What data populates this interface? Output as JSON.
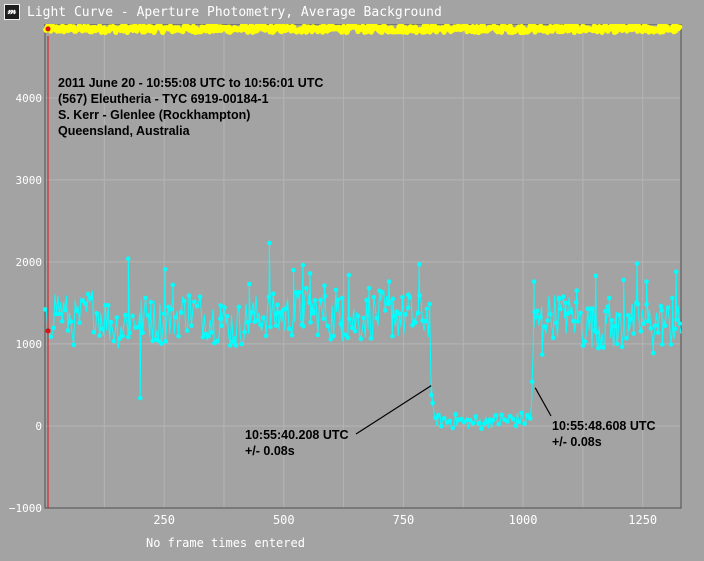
{
  "window": {
    "title": "Light Curve - Aperture Photometry, Average Background",
    "icon": "light-curve-app-icon"
  },
  "footer": {
    "note": "No frame times entered"
  },
  "colors": {
    "background": "#a3a3a3",
    "grid": "#b4b4b4",
    "axis": "#4f4f4f",
    "tick_label": "#ffffff",
    "comparison_series": "#ffff00",
    "target_series": "#00ffff",
    "cursor": "#dd1111",
    "annotation": "#000000"
  },
  "chart_data": {
    "type": "line",
    "xlim": [
      1,
      1330
    ],
    "ylim": [
      -1000,
      4900
    ],
    "x_ticks": [
      250,
      500,
      750,
      1000,
      1250
    ],
    "y_ticks": [
      -1000,
      0,
      1000,
      2000,
      3000,
      4000
    ],
    "grid": true,
    "cursor_x": 1,
    "series": [
      {
        "role": "comparison",
        "color": "#ffff00",
        "frames": [
          1,
          1330
        ],
        "level": 4840,
        "spread": 90
      },
      {
        "role": "target",
        "color": "#00ffff",
        "keypoints": [
          [
            1,
            1160
          ],
          [
            25,
            1480
          ],
          [
            60,
            1250
          ],
          [
            100,
            1430
          ],
          [
            150,
            1200
          ],
          [
            200,
            1330
          ],
          [
            250,
            1270
          ],
          [
            300,
            1420
          ],
          [
            350,
            1300
          ],
          [
            400,
            1200
          ],
          [
            450,
            1360
          ],
          [
            500,
            1330
          ],
          [
            550,
            1430
          ],
          [
            600,
            1310
          ],
          [
            650,
            1280
          ],
          [
            700,
            1370
          ],
          [
            750,
            1320
          ],
          [
            805,
            1340
          ],
          [
            808,
            540
          ],
          [
            812,
            80
          ],
          [
            850,
            60
          ],
          [
            900,
            40
          ],
          [
            950,
            70
          ],
          [
            1000,
            80
          ],
          [
            1016,
            80
          ],
          [
            1019,
            540
          ],
          [
            1023,
            1200
          ],
          [
            1050,
            1360
          ],
          [
            1100,
            1340
          ],
          [
            1150,
            1200
          ],
          [
            1200,
            1190
          ],
          [
            1250,
            1280
          ],
          [
            1300,
            1240
          ],
          [
            1330,
            1200
          ]
        ],
        "scatter": 280,
        "points_visible": [
          [
            175,
            2040
          ],
          [
            200,
            340
          ],
          [
            222,
            1510
          ],
          [
            252,
            1910
          ],
          [
            268,
            1720
          ],
          [
            302,
            1590
          ],
          [
            368,
            1470
          ],
          [
            428,
            1730
          ],
          [
            470,
            2230
          ],
          [
            485,
            1370
          ],
          [
            520,
            1900
          ],
          [
            540,
            1960
          ],
          [
            555,
            1860
          ],
          [
            562,
            1400
          ],
          [
            585,
            1710
          ],
          [
            609,
            1660
          ],
          [
            622,
            1560
          ],
          [
            636,
            1840
          ],
          [
            678,
            1680
          ],
          [
            720,
            1760
          ],
          [
            728,
            1550
          ],
          [
            760,
            1600
          ],
          [
            783,
            1970
          ],
          [
            799,
            1430
          ],
          [
            1023,
            1760
          ],
          [
            1040,
            870
          ],
          [
            1075,
            1560
          ],
          [
            1089,
            1500
          ],
          [
            1112,
            1650
          ],
          [
            1125,
            980
          ],
          [
            1145,
            1430
          ],
          [
            1152,
            1830
          ],
          [
            1157,
            950
          ],
          [
            1172,
            1400
          ],
          [
            1180,
            1560
          ],
          [
            1196,
            1000
          ],
          [
            1210,
            1780
          ],
          [
            1220,
            1350
          ],
          [
            1238,
            1980
          ],
          [
            1258,
            1760
          ],
          [
            1272,
            890
          ],
          [
            1290,
            1410
          ],
          [
            1312,
            1560
          ],
          [
            1320,
            1880
          ]
        ]
      }
    ],
    "annotations": [
      {
        "lines": [
          "2011 June 20 - 10:55:08 UTC to 10:56:01 UTC",
          "(567) Eleutheria - TYC 6919-00184-1",
          "S. Kerr - Glenlee (Rockhampton)",
          "Queensland, Australia"
        ]
      },
      {
        "lines": [
          "10:55:40.208 UTC",
          "+/- 0.08s"
        ],
        "frame": 808,
        "value": 540
      },
      {
        "lines": [
          "10:55:48.608 UTC",
          "+/- 0.08s"
        ],
        "frame": 1019,
        "value": 540
      }
    ]
  }
}
